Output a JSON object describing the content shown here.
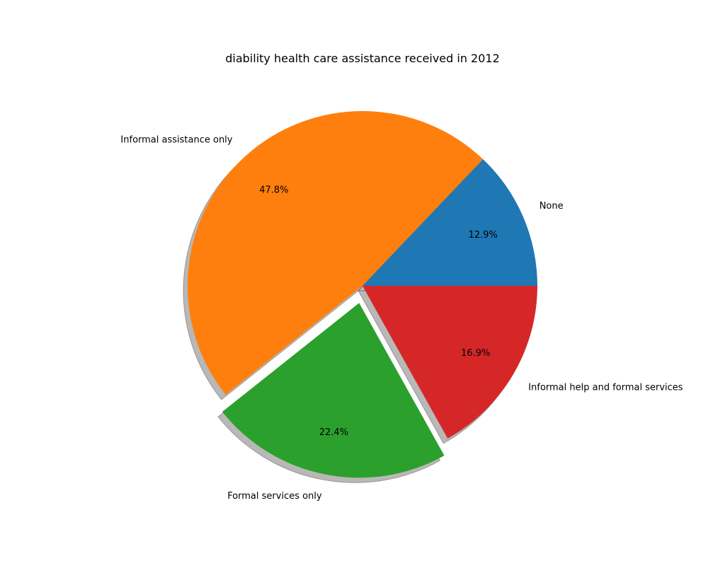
{
  "chart_data": {
    "type": "pie",
    "title": "diability health care assistance received in 2012",
    "slices": [
      {
        "label": "None",
        "value": 12.9,
        "pct_label": "12.9%",
        "color": "#1f77b4",
        "explode": 0
      },
      {
        "label": "Informal assistance only",
        "value": 47.8,
        "pct_label": "47.8%",
        "color": "#ff7f0e",
        "explode": 0
      },
      {
        "label": "Formal services only",
        "value": 22.4,
        "pct_label": "22.4%",
        "color": "#2ca02c",
        "explode": 0.1
      },
      {
        "label": "Informal help and formal services",
        "value": 16.9,
        "pct_label": "16.9%",
        "color": "#d62728",
        "explode": 0
      }
    ],
    "start_angle": 0,
    "direction": "counterclockwise",
    "shadow": true,
    "legend": "none"
  }
}
